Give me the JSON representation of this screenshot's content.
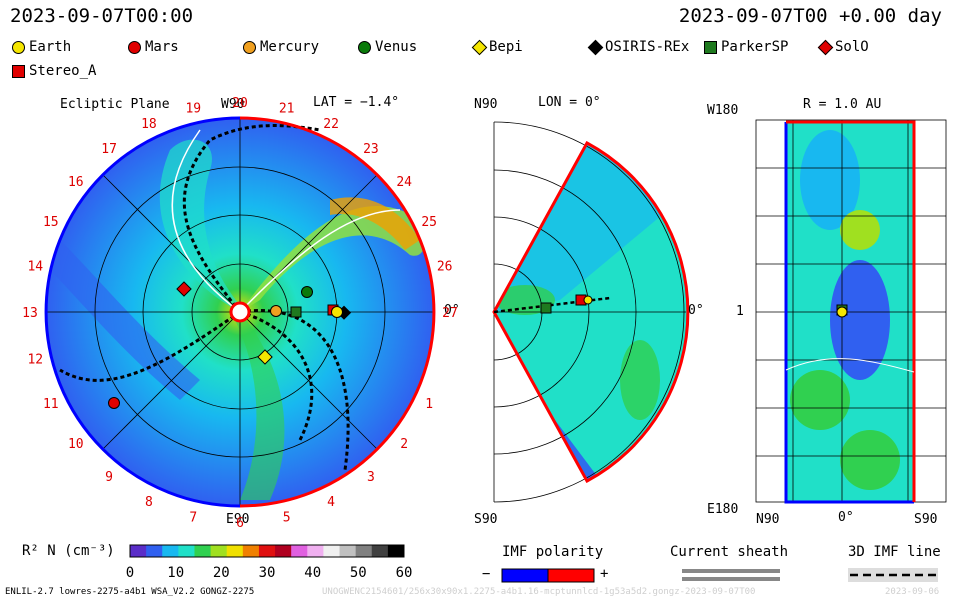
{
  "header": {
    "timestamp_left": "2023-09-07T00:00",
    "timestamp_right": "2023-09-07T00 +0.00 day"
  },
  "legend": {
    "items": [
      {
        "name": "Earth",
        "color": "#f5e600",
        "shape": "circle"
      },
      {
        "name": "Mars",
        "color": "#e00000",
        "shape": "circle"
      },
      {
        "name": "Mercury",
        "color": "#f0a020",
        "shape": "circle"
      },
      {
        "name": "Venus",
        "color": "#0a7a0a",
        "shape": "circle"
      },
      {
        "name": "Bepi",
        "color": "#f5e600",
        "shape": "diamond"
      },
      {
        "name": "OSIRIS-REx",
        "color": "#000000",
        "shape": "diamond"
      },
      {
        "name": "ParkerSP",
        "color": "#1f7a1f",
        "shape": "square"
      },
      {
        "name": "SolO",
        "color": "#e00000",
        "shape": "diamond"
      },
      {
        "name": "Stereo_A",
        "color": "#e00000",
        "shape": "square"
      }
    ]
  },
  "panels": {
    "ecliptic": {
      "title": "Ecliptic Plane",
      "top_label": "W90",
      "bottom_label": "E90",
      "lat_label": "LAT = −1.4°",
      "right_label": "0°",
      "carrington_labels": [
        "20",
        "21",
        "22",
        "23",
        "24",
        "25",
        "26",
        "27",
        "0",
        "1",
        "2",
        "3",
        "4",
        "5",
        "6",
        "7",
        "8",
        "9",
        "10",
        "11",
        "12",
        "13",
        "14",
        "15",
        "16",
        "17",
        "18",
        "19"
      ]
    },
    "meridional": {
      "top_label": "N90",
      "lon_label": "LON = 0°",
      "right_label": "0°",
      "bottom_label": "S90"
    },
    "radial": {
      "top_left_label": "W180",
      "r_label": "R = 1.0 AU",
      "mid_label": "1",
      "bottom_left_label": "E180",
      "x_labels": [
        "N90",
        "0°",
        "S90"
      ]
    }
  },
  "colorbar": {
    "label": "R² N (cm⁻³)",
    "ticks": [
      "0",
      "10",
      "20",
      "30",
      "40",
      "50",
      "60"
    ],
    "colors": [
      "#5a2dc8",
      "#3060f0",
      "#18b8f0",
      "#20e0c8",
      "#30d050",
      "#a0e020",
      "#f0e000",
      "#f08000",
      "#e01010",
      "#b00020",
      "#e060e0",
      "#f0b0f0",
      "#f0f0f0",
      "#c0c0c0",
      "#808080",
      "#404040",
      "#000000"
    ]
  },
  "imf_legend": {
    "polarity_title": "IMF polarity",
    "minus": "−",
    "plus": "+",
    "minus_color": "#0000ff",
    "plus_color": "#ff0000",
    "sheath_title": "Current sheath",
    "line_title": "3D IMF line"
  },
  "footer": {
    "model_info": "ENLIL-2.7 lowres-2275-a4b1 WSA_V2.2 GONGZ-2275",
    "run_info": "UNOGWENC2154601/256x30x90x1.2275-a4b1.16-mcptunnlcd-1g53a5d2.gongz-2023-09-07T00",
    "date_info": "2023-09-06"
  }
}
